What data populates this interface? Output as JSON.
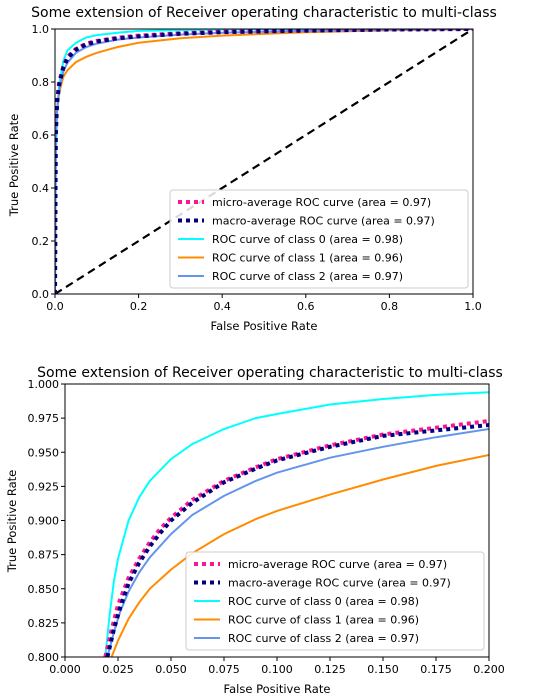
{
  "chart_data": [
    {
      "type": "line",
      "title": "Some extension of Receiver operating characteristic to multi-class",
      "xlabel": "False Positive Rate",
      "ylabel": "True Positive Rate",
      "xlim": [
        0.0,
        1.0
      ],
      "ylim": [
        0.0,
        1.0
      ],
      "xticks": [
        "0.0",
        "0.2",
        "0.4",
        "0.6",
        "0.8",
        "1.0"
      ],
      "yticks": [
        "0.0",
        "0.2",
        "0.4",
        "0.6",
        "0.8",
        "1.0"
      ],
      "grid": false,
      "legend_position": "lower-right",
      "series": [
        {
          "name": "micro-average ROC curve (area = 0.97)",
          "color": "#ff1493",
          "style": "dotted",
          "x": [
            0.0,
            0.002,
            0.005,
            0.01,
            0.02,
            0.03,
            0.05,
            0.075,
            0.1,
            0.15,
            0.2,
            0.3,
            0.4,
            0.6,
            0.8,
            1.0
          ],
          "y": [
            0.0,
            0.62,
            0.73,
            0.8,
            0.86,
            0.895,
            0.925,
            0.945,
            0.955,
            0.967,
            0.975,
            0.984,
            0.99,
            0.995,
            0.998,
            1.0
          ]
        },
        {
          "name": "macro-average ROC curve (area = 0.97)",
          "color": "#000080",
          "style": "dotted",
          "x": [
            0.0,
            0.002,
            0.005,
            0.01,
            0.02,
            0.03,
            0.05,
            0.075,
            0.1,
            0.15,
            0.2,
            0.3,
            0.4,
            0.6,
            0.8,
            1.0
          ],
          "y": [
            0.0,
            0.6,
            0.72,
            0.79,
            0.855,
            0.89,
            0.922,
            0.942,
            0.953,
            0.965,
            0.972,
            0.982,
            0.988,
            0.994,
            0.998,
            1.0
          ]
        },
        {
          "name": "ROC curve of class 0 (area = 0.98)",
          "color": "#00ffff",
          "style": "solid",
          "x": [
            0.0,
            0.002,
            0.005,
            0.01,
            0.02,
            0.03,
            0.05,
            0.075,
            0.1,
            0.15,
            0.2,
            0.3,
            0.4,
            0.6,
            0.8,
            1.0
          ],
          "y": [
            0.0,
            0.5,
            0.68,
            0.79,
            0.88,
            0.92,
            0.948,
            0.968,
            0.977,
            0.986,
            0.993,
            0.996,
            0.998,
            0.999,
            1.0,
            1.0
          ]
        },
        {
          "name": "ROC curve of class 1 (area = 0.96)",
          "color": "#ff8c00",
          "style": "solid",
          "x": [
            0.0,
            0.002,
            0.005,
            0.01,
            0.02,
            0.03,
            0.05,
            0.075,
            0.1,
            0.15,
            0.2,
            0.3,
            0.4,
            0.6,
            0.8,
            1.0
          ],
          "y": [
            0.0,
            0.63,
            0.7,
            0.76,
            0.82,
            0.845,
            0.875,
            0.895,
            0.91,
            0.932,
            0.948,
            0.965,
            0.975,
            0.988,
            0.995,
            1.0
          ]
        },
        {
          "name": "ROC curve of class 2 (area = 0.97)",
          "color": "#6495ed",
          "style": "solid",
          "x": [
            0.0,
            0.002,
            0.005,
            0.01,
            0.02,
            0.03,
            0.05,
            0.075,
            0.1,
            0.15,
            0.2,
            0.3,
            0.4,
            0.6,
            0.8,
            1.0
          ],
          "y": [
            0.0,
            0.58,
            0.7,
            0.77,
            0.84,
            0.873,
            0.91,
            0.932,
            0.945,
            0.96,
            0.968,
            0.979,
            0.986,
            0.993,
            0.997,
            1.0
          ]
        }
      ],
      "reference_line": {
        "x": [
          0.0,
          1.0
        ],
        "y": [
          0.0,
          1.0
        ],
        "color": "#000000",
        "style": "dashed"
      }
    },
    {
      "type": "line",
      "title": "Some extension of Receiver operating characteristic to multi-class",
      "xlabel": "False Positive Rate",
      "ylabel": "True Positive Rate",
      "xlim": [
        0.0,
        0.2
      ],
      "ylim": [
        0.8,
        1.0
      ],
      "xticks": [
        "0.000",
        "0.025",
        "0.050",
        "0.075",
        "0.100",
        "0.125",
        "0.150",
        "0.175",
        "0.200"
      ],
      "yticks": [
        "0.800",
        "0.825",
        "0.850",
        "0.875",
        "0.900",
        "0.925",
        "0.950",
        "0.975",
        "1.000"
      ],
      "grid": false,
      "legend_position": "lower-right",
      "series": [
        {
          "name": "micro-average ROC curve (area = 0.97)",
          "color": "#ff1493",
          "style": "dotted",
          "x": [
            0.019,
            0.022,
            0.025,
            0.03,
            0.035,
            0.04,
            0.045,
            0.05,
            0.06,
            0.075,
            0.09,
            0.1,
            0.125,
            0.15,
            0.175,
            0.2
          ],
          "y": [
            0.8,
            0.82,
            0.838,
            0.858,
            0.872,
            0.884,
            0.894,
            0.902,
            0.915,
            0.929,
            0.939,
            0.945,
            0.955,
            0.963,
            0.968,
            0.973
          ]
        },
        {
          "name": "macro-average ROC curve (area = 0.97)",
          "color": "#000080",
          "style": "dotted",
          "x": [
            0.02,
            0.023,
            0.026,
            0.03,
            0.035,
            0.04,
            0.045,
            0.05,
            0.06,
            0.075,
            0.09,
            0.1,
            0.125,
            0.15,
            0.175,
            0.2
          ],
          "y": [
            0.8,
            0.82,
            0.836,
            0.854,
            0.869,
            0.881,
            0.891,
            0.9,
            0.913,
            0.928,
            0.938,
            0.944,
            0.954,
            0.962,
            0.966,
            0.97
          ]
        },
        {
          "name": "ROC curve of class 0 (area = 0.98)",
          "color": "#00ffff",
          "style": "solid",
          "x": [
            0.019,
            0.021,
            0.023,
            0.025,
            0.03,
            0.035,
            0.04,
            0.05,
            0.06,
            0.075,
            0.09,
            0.1,
            0.125,
            0.15,
            0.175,
            0.2
          ],
          "y": [
            0.8,
            0.83,
            0.855,
            0.872,
            0.9,
            0.917,
            0.929,
            0.945,
            0.956,
            0.967,
            0.975,
            0.978,
            0.985,
            0.989,
            0.992,
            0.994
          ]
        },
        {
          "name": "ROC curve of class 1 (area = 0.96)",
          "color": "#ff8c00",
          "style": "solid",
          "x": [
            0.022,
            0.025,
            0.03,
            0.035,
            0.04,
            0.05,
            0.06,
            0.075,
            0.09,
            0.1,
            0.125,
            0.15,
            0.175,
            0.2
          ],
          "y": [
            0.8,
            0.812,
            0.828,
            0.84,
            0.85,
            0.864,
            0.876,
            0.89,
            0.901,
            0.907,
            0.919,
            0.93,
            0.94,
            0.948
          ]
        },
        {
          "name": "ROC curve of class 2 (area = 0.97)",
          "color": "#6495ed",
          "style": "solid",
          "x": [
            0.02,
            0.023,
            0.026,
            0.03,
            0.035,
            0.04,
            0.05,
            0.06,
            0.075,
            0.09,
            0.1,
            0.125,
            0.15,
            0.175,
            0.2
          ],
          "y": [
            0.8,
            0.818,
            0.833,
            0.848,
            0.862,
            0.873,
            0.89,
            0.904,
            0.918,
            0.929,
            0.935,
            0.946,
            0.954,
            0.961,
            0.967
          ]
        }
      ]
    }
  ]
}
